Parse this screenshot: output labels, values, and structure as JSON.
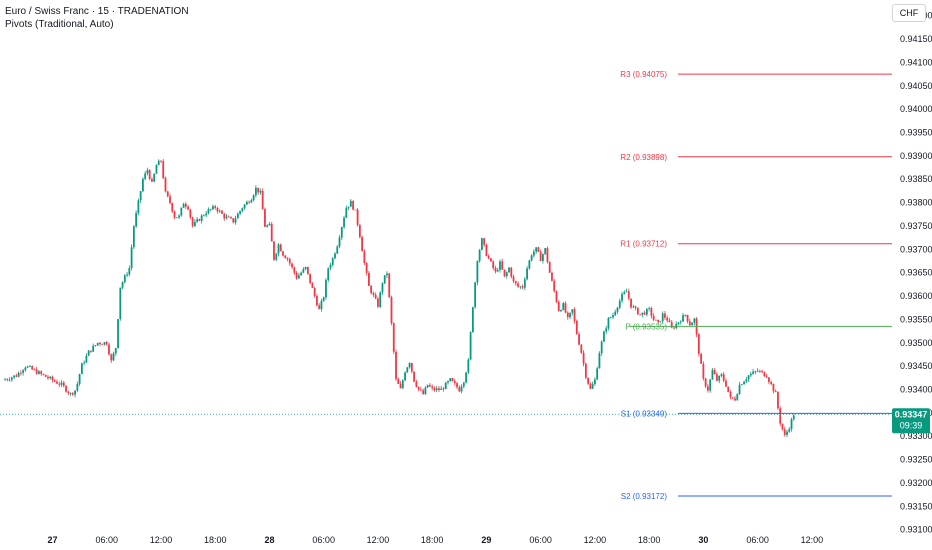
{
  "header": {
    "symbol_line": "Euro / Swiss Franc · 15 · TRADENATION",
    "indicator_line": "Pivots (Traditional, Auto)"
  },
  "currency": "CHF",
  "price_tag": {
    "price": "0.93347",
    "countdown": "09:39",
    "color": "#089981"
  },
  "colors": {
    "up": "#089981",
    "down": "#f23645",
    "resistance": "#f23645",
    "pivot": "#4caf50",
    "support": "#2962ff"
  },
  "chart_data": {
    "type": "candlestick",
    "y_ticks": [
      "0.94200",
      "0.94150",
      "0.94100",
      "0.94050",
      "0.94000",
      "0.93950",
      "0.93900",
      "0.93850",
      "0.93800",
      "0.93750",
      "0.93700",
      "0.93650",
      "0.93600",
      "0.93550",
      "0.93500",
      "0.93450",
      "0.93400",
      "0.93350",
      "0.93300",
      "0.93250",
      "0.93200",
      "0.93150",
      "0.93100"
    ],
    "ylim": [
      0.93095,
      0.94225
    ],
    "x_ticks": [
      {
        "label": "27",
        "bold": true,
        "h": 0
      },
      {
        "label": "06:00",
        "bold": false,
        "h": 6
      },
      {
        "label": "12:00",
        "bold": false,
        "h": 12
      },
      {
        "label": "18:00",
        "bold": false,
        "h": 18
      },
      {
        "label": "28",
        "bold": true,
        "h": 24
      },
      {
        "label": "06:00",
        "bold": false,
        "h": 30
      },
      {
        "label": "12:00",
        "bold": false,
        "h": 36
      },
      {
        "label": "18:00",
        "bold": false,
        "h": 42
      },
      {
        "label": "29",
        "bold": true,
        "h": 48
      },
      {
        "label": "06:00",
        "bold": false,
        "h": 54
      },
      {
        "label": "12:00",
        "bold": false,
        "h": 60
      },
      {
        "label": "18:00",
        "bold": false,
        "h": 66
      },
      {
        "label": "30",
        "bold": true,
        "h": 72
      },
      {
        "label": "06:00",
        "bold": false,
        "h": 78
      },
      {
        "label": "12:00",
        "bold": false,
        "h": 84
      }
    ],
    "pivots": [
      {
        "label": "R3 (0.94075)",
        "value": 0.94075,
        "kind": "resistance"
      },
      {
        "label": "R2 (0.93898)",
        "value": 0.93898,
        "kind": "resistance"
      },
      {
        "label": "R1 (0.93712)",
        "value": 0.93712,
        "kind": "resistance"
      },
      {
        "label": "P (0.93535)",
        "value": 0.93535,
        "kind": "pivot"
      },
      {
        "label": "S1 (0.93349)",
        "value": 0.93349,
        "kind": "support"
      },
      {
        "label": "S2 (0.93172)",
        "value": 0.93172,
        "kind": "support"
      }
    ],
    "price_path": [
      [
        -5.5,
        0.9342
      ],
      [
        -4,
        0.9343
      ],
      [
        -3,
        0.9345
      ],
      [
        -2,
        0.9344
      ],
      [
        -1,
        0.9343
      ],
      [
        0,
        0.9342
      ],
      [
        1,
        0.9341
      ],
      [
        2,
        0.9339
      ],
      [
        2.6,
        0.934
      ],
      [
        3.2,
        0.9345
      ],
      [
        4,
        0.9348
      ],
      [
        5,
        0.935
      ],
      [
        6,
        0.935
      ],
      [
        6.5,
        0.9346
      ],
      [
        7,
        0.9349
      ],
      [
        7.5,
        0.9362
      ],
      [
        8,
        0.9364
      ],
      [
        8.5,
        0.9366
      ],
      [
        9,
        0.9375
      ],
      [
        9.5,
        0.938
      ],
      [
        10,
        0.9385
      ],
      [
        10.5,
        0.9387
      ],
      [
        11,
        0.9384
      ],
      [
        11.5,
        0.9388
      ],
      [
        12,
        0.9389
      ],
      [
        12.5,
        0.9382
      ],
      [
        13,
        0.938
      ],
      [
        13.5,
        0.9377
      ],
      [
        14,
        0.9377
      ],
      [
        14.5,
        0.938
      ],
      [
        15,
        0.9379
      ],
      [
        15.5,
        0.9375
      ],
      [
        16,
        0.9376
      ],
      [
        17,
        0.9378
      ],
      [
        18,
        0.9379
      ],
      [
        19,
        0.9377
      ],
      [
        20,
        0.9376
      ],
      [
        21,
        0.9379
      ],
      [
        22,
        0.9381
      ],
      [
        22.5,
        0.9383
      ],
      [
        23,
        0.9382
      ],
      [
        23.5,
        0.9375
      ],
      [
        24,
        0.9375
      ],
      [
        24.5,
        0.9368
      ],
      [
        25,
        0.9371
      ],
      [
        25.5,
        0.9369
      ],
      [
        26,
        0.9368
      ],
      [
        26.5,
        0.9366
      ],
      [
        27,
        0.9364
      ],
      [
        28,
        0.9366
      ],
      [
        28.5,
        0.9363
      ],
      [
        29,
        0.936
      ],
      [
        29.5,
        0.9357
      ],
      [
        30,
        0.936
      ],
      [
        30.5,
        0.9366
      ],
      [
        31,
        0.9368
      ],
      [
        31.5,
        0.9371
      ],
      [
        32,
        0.9375
      ],
      [
        32.5,
        0.9379
      ],
      [
        33,
        0.938
      ],
      [
        33.5,
        0.9378
      ],
      [
        34,
        0.9373
      ],
      [
        34.5,
        0.9367
      ],
      [
        35,
        0.9362
      ],
      [
        35.5,
        0.936
      ],
      [
        36,
        0.9358
      ],
      [
        36.5,
        0.9363
      ],
      [
        37,
        0.9365
      ],
      [
        37.5,
        0.9354
      ],
      [
        38,
        0.9342
      ],
      [
        38.5,
        0.934
      ],
      [
        39,
        0.9344
      ],
      [
        39.5,
        0.9346
      ],
      [
        40,
        0.9342
      ],
      [
        40.5,
        0.934
      ],
      [
        41,
        0.9339
      ],
      [
        41.5,
        0.9341
      ],
      [
        42,
        0.934
      ],
      [
        43,
        0.934
      ],
      [
        44,
        0.9342
      ],
      [
        45,
        0.934
      ],
      [
        45.5,
        0.9342
      ],
      [
        46,
        0.9346
      ],
      [
        46.5,
        0.9358
      ],
      [
        47,
        0.9368
      ],
      [
        47.5,
        0.9372
      ],
      [
        48,
        0.9369
      ],
      [
        48.5,
        0.9367
      ],
      [
        49,
        0.9365
      ],
      [
        49.5,
        0.9367
      ],
      [
        50,
        0.9364
      ],
      [
        50.5,
        0.9366
      ],
      [
        51,
        0.9363
      ],
      [
        51.5,
        0.9362
      ],
      [
        52,
        0.9362
      ],
      [
        52.5,
        0.9366
      ],
      [
        53,
        0.9369
      ],
      [
        53.5,
        0.937
      ],
      [
        54,
        0.9368
      ],
      [
        54.5,
        0.937
      ],
      [
        55,
        0.9365
      ],
      [
        55.5,
        0.9361
      ],
      [
        56,
        0.9357
      ],
      [
        56.5,
        0.9358
      ],
      [
        57,
        0.9355
      ],
      [
        57.5,
        0.9357
      ],
      [
        58,
        0.9352
      ],
      [
        58.5,
        0.9348
      ],
      [
        59,
        0.9343
      ],
      [
        59.5,
        0.934
      ],
      [
        60,
        0.9342
      ],
      [
        60.5,
        0.9348
      ],
      [
        61,
        0.9352
      ],
      [
        61.5,
        0.9355
      ],
      [
        62,
        0.9356
      ],
      [
        62.5,
        0.9358
      ],
      [
        63,
        0.936
      ],
      [
        63.5,
        0.9361
      ],
      [
        64,
        0.9358
      ],
      [
        64.5,
        0.9357
      ],
      [
        65,
        0.9356
      ],
      [
        66,
        0.9357
      ],
      [
        66.5,
        0.9355
      ],
      [
        67,
        0.9354
      ],
      [
        67.5,
        0.9356
      ],
      [
        68,
        0.9355
      ],
      [
        68.5,
        0.9353
      ],
      [
        69,
        0.9354
      ],
      [
        70,
        0.9356
      ],
      [
        70.5,
        0.9354
      ],
      [
        71,
        0.9355
      ],
      [
        71.5,
        0.9348
      ],
      [
        72,
        0.9342
      ],
      [
        72.5,
        0.934
      ],
      [
        73,
        0.9344
      ],
      [
        73.5,
        0.9342
      ],
      [
        74,
        0.9343
      ],
      [
        74.5,
        0.9341
      ],
      [
        75,
        0.9338
      ],
      [
        75.5,
        0.9338
      ],
      [
        76,
        0.9341
      ],
      [
        77,
        0.9343
      ],
      [
        78,
        0.9344
      ],
      [
        79,
        0.9343
      ],
      [
        79.5,
        0.9341
      ],
      [
        80,
        0.9339
      ],
      [
        80.5,
        0.9333
      ],
      [
        81,
        0.933
      ],
      [
        81.5,
        0.9332
      ],
      [
        82,
        0.93347
      ]
    ]
  }
}
